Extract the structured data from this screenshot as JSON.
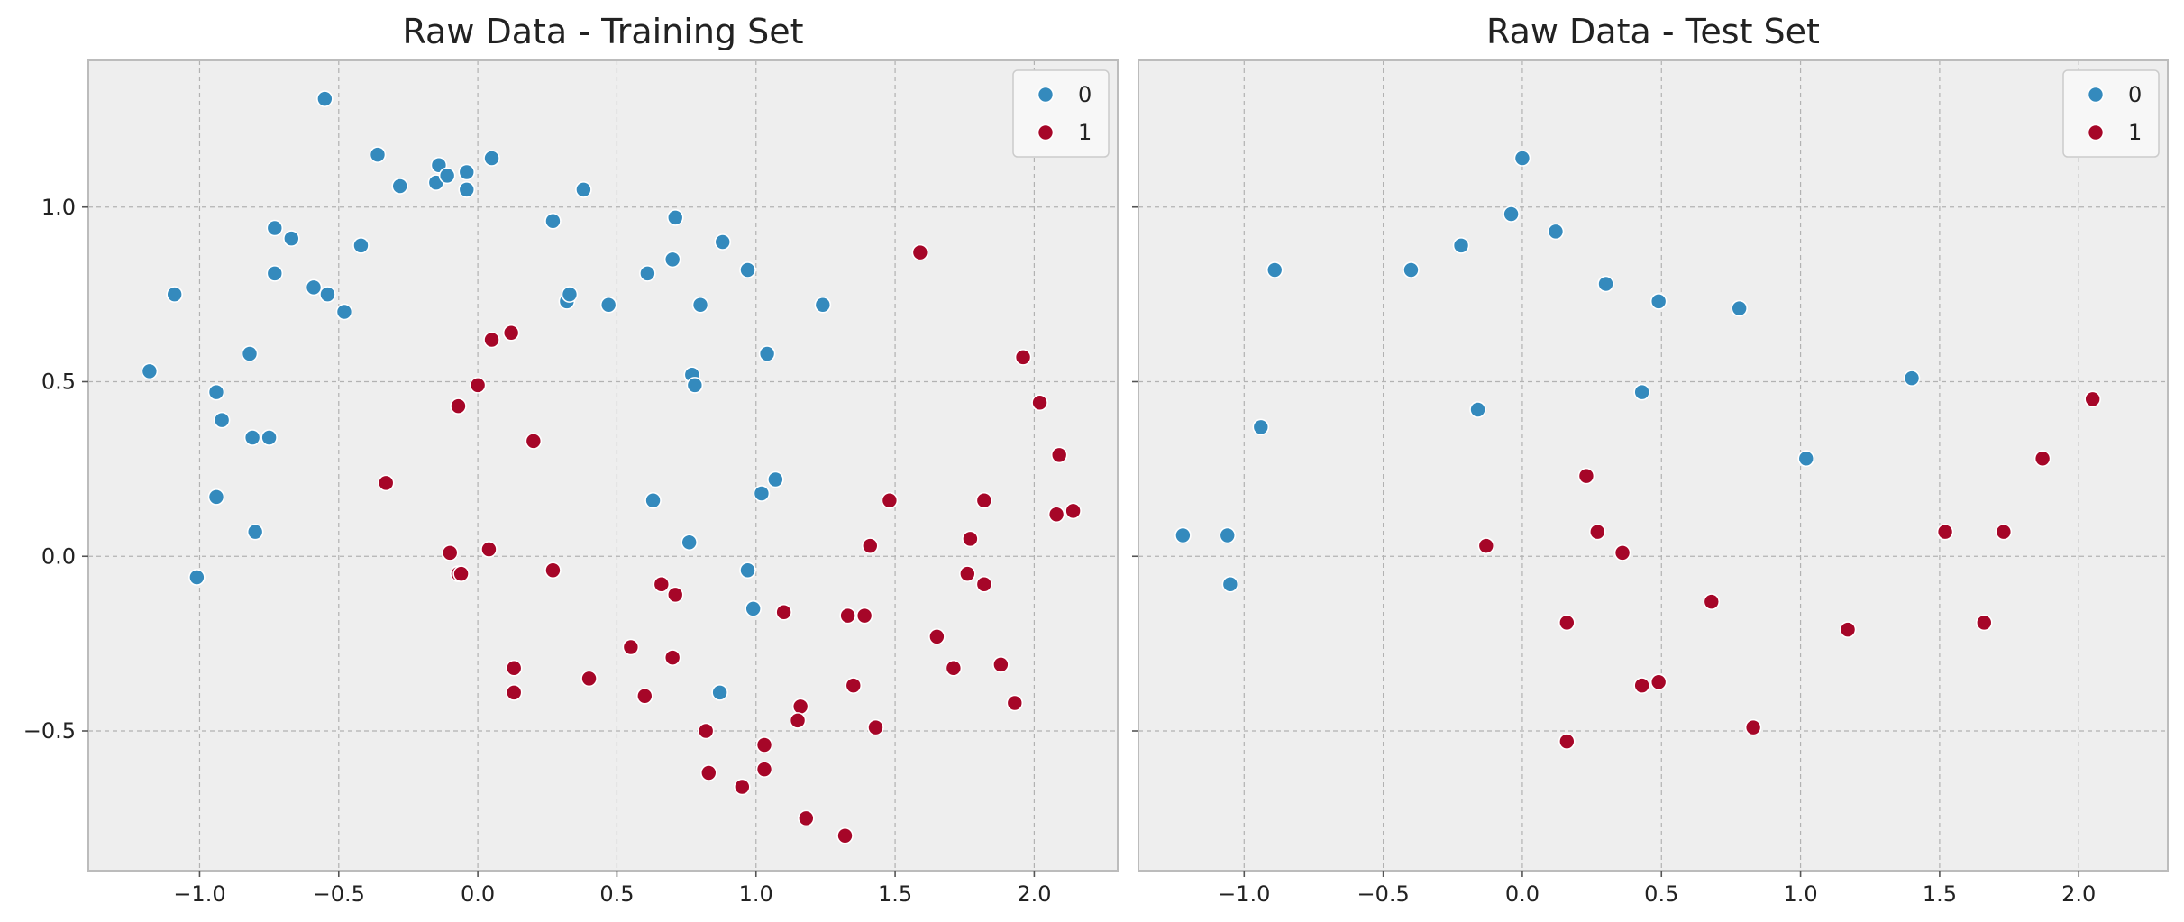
{
  "chart_data": [
    {
      "type": "scatter",
      "title": "Raw Data - Training Set",
      "xlabel": "",
      "ylabel": "",
      "xlim": [
        -1.4,
        2.3
      ],
      "ylim": [
        -0.9,
        1.42
      ],
      "xticks": [
        -1.0,
        -0.5,
        0.0,
        0.5,
        1.0,
        1.5,
        2.0
      ],
      "xtick_labels": [
        "−1.0",
        "−0.5",
        "0.0",
        "0.5",
        "1.0",
        "1.5",
        "2.0"
      ],
      "yticks": [
        -0.5,
        0.0,
        0.5,
        1.0
      ],
      "ytick_labels": [
        "−0.5",
        "0.0",
        "0.5",
        "1.0"
      ],
      "grid": true,
      "legend": "top-right",
      "series": [
        {
          "name": "0",
          "color": "#348ABD",
          "points": [
            [
              -0.55,
              1.31
            ],
            [
              -0.36,
              1.15
            ],
            [
              -0.28,
              1.06
            ],
            [
              -0.15,
              1.07
            ],
            [
              -0.14,
              1.12
            ],
            [
              -0.11,
              1.09
            ],
            [
              -0.04,
              1.1
            ],
            [
              -0.04,
              1.05
            ],
            [
              0.05,
              1.14
            ],
            [
              0.27,
              0.96
            ],
            [
              0.38,
              1.05
            ],
            [
              0.71,
              0.97
            ],
            [
              0.7,
              0.85
            ],
            [
              0.88,
              0.9
            ],
            [
              0.97,
              0.82
            ],
            [
              0.61,
              0.81
            ],
            [
              0.8,
              0.72
            ],
            [
              1.24,
              0.72
            ],
            [
              0.47,
              0.72
            ],
            [
              0.32,
              0.73
            ],
            [
              0.33,
              0.75
            ],
            [
              -1.09,
              0.75
            ],
            [
              -0.73,
              0.94
            ],
            [
              -0.67,
              0.91
            ],
            [
              -0.42,
              0.89
            ],
            [
              -0.73,
              0.81
            ],
            [
              -0.59,
              0.77
            ],
            [
              -0.54,
              0.75
            ],
            [
              -0.48,
              0.7
            ],
            [
              -1.18,
              0.53
            ],
            [
              -0.82,
              0.58
            ],
            [
              -0.94,
              0.47
            ],
            [
              -0.92,
              0.39
            ],
            [
              -0.81,
              0.34
            ],
            [
              -0.75,
              0.34
            ],
            [
              -0.94,
              0.17
            ],
            [
              -0.8,
              0.07
            ],
            [
              -1.01,
              -0.06
            ],
            [
              1.04,
              0.58
            ],
            [
              0.77,
              0.52
            ],
            [
              0.78,
              0.49
            ],
            [
              1.07,
              0.22
            ],
            [
              1.02,
              0.18
            ],
            [
              0.63,
              0.16
            ],
            [
              0.76,
              0.04
            ],
            [
              0.97,
              -0.04
            ],
            [
              0.99,
              -0.15
            ],
            [
              0.87,
              -0.39
            ]
          ]
        },
        {
          "name": "1",
          "color": "#A60628",
          "points": [
            [
              1.59,
              0.87
            ],
            [
              1.96,
              0.57
            ],
            [
              2.02,
              0.44
            ],
            [
              2.09,
              0.29
            ],
            [
              2.08,
              0.12
            ],
            [
              2.14,
              0.13
            ],
            [
              1.82,
              0.16
            ],
            [
              1.77,
              0.05
            ],
            [
              1.76,
              -0.05
            ],
            [
              1.82,
              -0.08
            ],
            [
              1.65,
              -0.23
            ],
            [
              1.71,
              -0.32
            ],
            [
              1.88,
              -0.31
            ],
            [
              1.93,
              -0.42
            ],
            [
              1.48,
              0.16
            ],
            [
              1.41,
              0.03
            ],
            [
              1.39,
              -0.17
            ],
            [
              1.33,
              -0.17
            ],
            [
              1.35,
              -0.37
            ],
            [
              1.43,
              -0.49
            ],
            [
              1.16,
              -0.43
            ],
            [
              1.15,
              -0.47
            ],
            [
              1.1,
              -0.16
            ],
            [
              1.03,
              -0.54
            ],
            [
              1.03,
              -0.61
            ],
            [
              0.95,
              -0.66
            ],
            [
              0.83,
              -0.62
            ],
            [
              0.82,
              -0.5
            ],
            [
              1.18,
              -0.75
            ],
            [
              1.32,
              -0.8
            ],
            [
              0.66,
              -0.08
            ],
            [
              0.71,
              -0.11
            ],
            [
              0.7,
              -0.29
            ],
            [
              0.55,
              -0.26
            ],
            [
              0.6,
              -0.4
            ],
            [
              0.4,
              -0.35
            ],
            [
              0.27,
              -0.04
            ],
            [
              0.13,
              -0.32
            ],
            [
              0.13,
              -0.39
            ],
            [
              0.05,
              0.62
            ],
            [
              0.12,
              0.64
            ],
            [
              0.0,
              0.49
            ],
            [
              -0.07,
              0.43
            ],
            [
              0.2,
              0.33
            ],
            [
              -0.33,
              0.21
            ],
            [
              -0.1,
              0.01
            ],
            [
              -0.07,
              -0.05
            ],
            [
              -0.06,
              -0.05
            ],
            [
              0.04,
              0.02
            ]
          ]
        }
      ]
    },
    {
      "type": "scatter",
      "title": "Raw Data - Test Set",
      "xlabel": "",
      "ylabel": "",
      "xlim": [
        -1.38,
        2.32
      ],
      "ylim": [
        -0.9,
        1.42
      ],
      "xticks": [
        -1.0,
        -0.5,
        0.0,
        0.5,
        1.0,
        1.5,
        2.0
      ],
      "xtick_labels": [
        "−1.0",
        "−0.5",
        "0.0",
        "0.5",
        "1.0",
        "1.5",
        "2.0"
      ],
      "yticks": [
        -0.5,
        0.0,
        0.5,
        1.0
      ],
      "ytick_labels": [],
      "grid": true,
      "legend": "top-right",
      "series": [
        {
          "name": "0",
          "color": "#348ABD",
          "points": [
            [
              0.0,
              1.14
            ],
            [
              -0.04,
              0.98
            ],
            [
              0.12,
              0.93
            ],
            [
              -0.22,
              0.89
            ],
            [
              -0.4,
              0.82
            ],
            [
              -0.89,
              0.82
            ],
            [
              0.3,
              0.78
            ],
            [
              0.49,
              0.73
            ],
            [
              0.78,
              0.71
            ],
            [
              1.4,
              0.51
            ],
            [
              0.43,
              0.47
            ],
            [
              -0.16,
              0.42
            ],
            [
              -0.94,
              0.37
            ],
            [
              1.02,
              0.28
            ],
            [
              -1.22,
              0.06
            ],
            [
              -1.06,
              0.06
            ],
            [
              -1.05,
              -0.08
            ]
          ]
        },
        {
          "name": "1",
          "color": "#A60628",
          "points": [
            [
              2.05,
              0.45
            ],
            [
              1.87,
              0.28
            ],
            [
              0.23,
              0.23
            ],
            [
              0.27,
              0.07
            ],
            [
              -0.13,
              0.03
            ],
            [
              0.36,
              0.01
            ],
            [
              1.52,
              0.07
            ],
            [
              1.73,
              0.07
            ],
            [
              0.68,
              -0.13
            ],
            [
              0.16,
              -0.19
            ],
            [
              1.66,
              -0.19
            ],
            [
              1.17,
              -0.21
            ],
            [
              0.49,
              -0.36
            ],
            [
              0.43,
              -0.37
            ],
            [
              0.83,
              -0.49
            ],
            [
              0.16,
              -0.53
            ]
          ]
        }
      ]
    }
  ]
}
